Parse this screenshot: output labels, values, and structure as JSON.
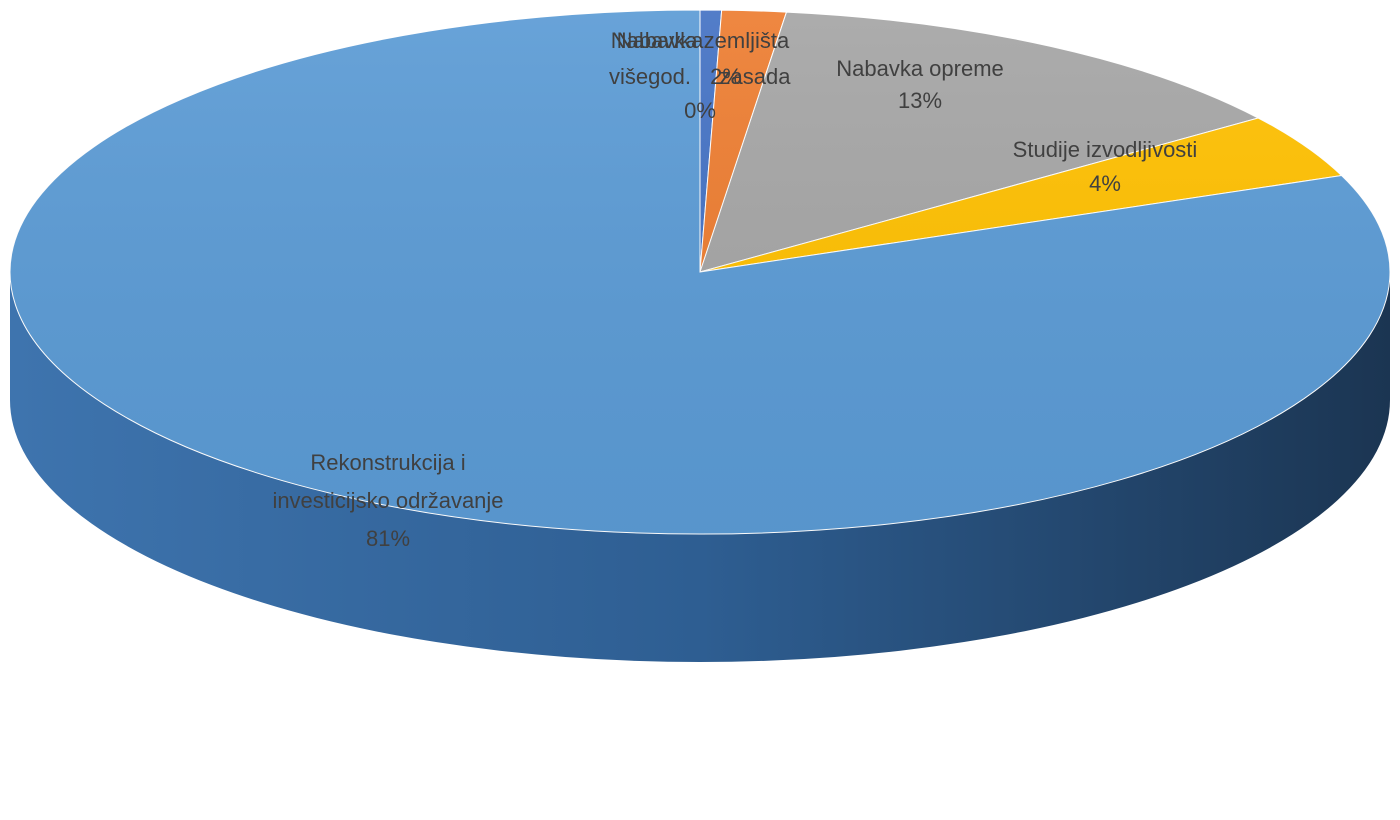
{
  "chart_data": {
    "type": "pie",
    "style": "3d",
    "title": "",
    "slices": [
      {
        "name": "Nabavka zemljišta",
        "display_lines": [
          "Nabavka zemljišta",
          "0%"
        ],
        "value": 0.5,
        "percent_label": "0%",
        "color": "#4472C4"
      },
      {
        "name": "Nabavka višegod. zasada",
        "display_lines": [
          "Nabavka",
          "višegod.",
          "zasada",
          "2%"
        ],
        "value": 1.5,
        "percent_label": "2%",
        "color": "#ED7D31"
      },
      {
        "name": "Nabavka opreme",
        "display_lines": [
          "Nabavka opreme",
          "13%"
        ],
        "value": 13,
        "percent_label": "13%",
        "color": "#A5A5A5"
      },
      {
        "name": "Studije izvodljivosti",
        "display_lines": [
          "Studije izvodljivosti",
          "4%"
        ],
        "value": 4,
        "percent_label": "4%",
        "color": "#FFC000"
      },
      {
        "name": "Rekonstrukcija i investicijsko održavanje",
        "display_lines": [
          "Rekonstrukcija i",
          "investicijsko održavanje",
          "81%"
        ],
        "value": 81,
        "percent_label": "81%",
        "color": "#5B9BD5"
      }
    ],
    "start_angle_deg": 0,
    "direction": "clockwise",
    "legend": "none"
  }
}
